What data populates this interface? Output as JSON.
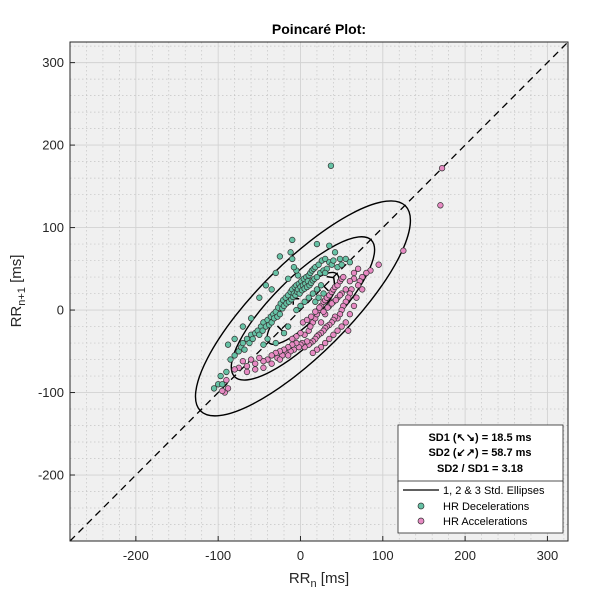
{
  "chart_data": {
    "type": "scatter",
    "title": "Poincaré Plot:",
    "xlabel": {
      "base": "RR",
      "sub": "n",
      "unit": " [ms]"
    },
    "ylabel": {
      "base": "RR",
      "sub": "n+1",
      "unit": " [ms]"
    },
    "xlim": [
      -280,
      325
    ],
    "ylim": [
      -280,
      325
    ],
    "xticks": [
      -200,
      -100,
      0,
      100,
      200,
      300
    ],
    "yticks": [
      -200,
      -100,
      0,
      100,
      200,
      300
    ],
    "grid": true,
    "identity_line": true,
    "ellipses": {
      "center": [
        3,
        2
      ],
      "sd1": 18.5,
      "sd2": 58.7,
      "multiples": [
        1,
        2,
        3
      ]
    },
    "stats": {
      "sd1": "SD1 (↖↘) = 18.5 ms",
      "sd2": "SD2 (↙↗) = 58.7 ms",
      "ratio": "SD2 / SD1 = 3.18"
    },
    "legend": {
      "position": "bottom-right",
      "entries": [
        "1, 2 & 3 Std. Ellipses",
        "HR Decelerations",
        "HR Accelerations"
      ]
    },
    "colors": {
      "decel": "#66c2a5",
      "accel": "#e78ac3",
      "background": "#f0f0f0"
    },
    "series": [
      {
        "name": "HR Decelerations",
        "points": [
          [
            37,
            175
          ],
          [
            -100,
            -90
          ],
          [
            -97,
            -80
          ],
          [
            -95,
            -90
          ],
          [
            -90,
            -75
          ],
          [
            -85,
            -60
          ],
          [
            -80,
            -55
          ],
          [
            -75,
            -50
          ],
          [
            -72,
            -45
          ],
          [
            -70,
            -40
          ],
          [
            -68,
            -48
          ],
          [
            -65,
            -35
          ],
          [
            -62,
            -40
          ],
          [
            -60,
            -30
          ],
          [
            -58,
            -35
          ],
          [
            -55,
            -28
          ],
          [
            -52,
            -25
          ],
          [
            -50,
            -30
          ],
          [
            -48,
            -20
          ],
          [
            -46,
            -25
          ],
          [
            -45,
            -15
          ],
          [
            -42,
            -20
          ],
          [
            -40,
            -12
          ],
          [
            -38,
            -18
          ],
          [
            -36,
            -8
          ],
          [
            -35,
            -15
          ],
          [
            -33,
            -5
          ],
          [
            -32,
            -10
          ],
          [
            -30,
            -2
          ],
          [
            -28,
            -8
          ],
          [
            -27,
            3
          ],
          [
            -25,
            -5
          ],
          [
            -24,
            8
          ],
          [
            -22,
            2
          ],
          [
            -21,
            12
          ],
          [
            -20,
            5
          ],
          [
            -18,
            15
          ],
          [
            -17,
            8
          ],
          [
            -15,
            18
          ],
          [
            -14,
            10
          ],
          [
            -12,
            22
          ],
          [
            -11,
            13
          ],
          [
            -10,
            25
          ],
          [
            -9,
            16
          ],
          [
            -8,
            20
          ],
          [
            -7,
            28
          ],
          [
            -6,
            18
          ],
          [
            -5,
            30
          ],
          [
            -4,
            22
          ],
          [
            -3,
            25
          ],
          [
            -2,
            32
          ],
          [
            -1,
            20
          ],
          [
            0,
            28
          ],
          [
            1,
            35
          ],
          [
            2,
            24
          ],
          [
            3,
            30
          ],
          [
            4,
            38
          ],
          [
            5,
            26
          ],
          [
            6,
            32
          ],
          [
            7,
            40
          ],
          [
            8,
            28
          ],
          [
            9,
            35
          ],
          [
            10,
            42
          ],
          [
            11,
            30
          ],
          [
            12,
            45
          ],
          [
            13,
            33
          ],
          [
            14,
            48
          ],
          [
            15,
            36
          ],
          [
            16,
            50
          ],
          [
            17,
            38
          ],
          [
            18,
            52
          ],
          [
            20,
            40
          ],
          [
            22,
            55
          ],
          [
            24,
            45
          ],
          [
            26,
            60
          ],
          [
            28,
            48
          ],
          [
            30,
            62
          ],
          [
            32,
            50
          ],
          [
            35,
            58
          ],
          [
            38,
            55
          ],
          [
            40,
            60
          ],
          [
            45,
            52
          ],
          [
            48,
            62
          ],
          [
            50,
            55
          ],
          [
            55,
            62
          ],
          [
            60,
            58
          ],
          [
            -3,
            42
          ],
          [
            -5,
            48
          ],
          [
            -8,
            52
          ],
          [
            -10,
            62
          ],
          [
            -12,
            70
          ],
          [
            -25,
            65
          ],
          [
            -30,
            -40
          ],
          [
            -40,
            -35
          ],
          [
            -45,
            -42
          ],
          [
            -20,
            -28
          ],
          [
            -15,
            -20
          ],
          [
            -5,
            0
          ],
          [
            0,
            5
          ],
          [
            5,
            10
          ],
          [
            10,
            15
          ],
          [
            15,
            20
          ],
          [
            20,
            25
          ],
          [
            25,
            30
          ],
          [
            18,
            10
          ],
          [
            22,
            15
          ],
          [
            28,
            20
          ],
          [
            -30,
            45
          ],
          [
            -42,
            30
          ],
          [
            -50,
            15
          ],
          [
            -60,
            -10
          ],
          [
            -70,
            -20
          ],
          [
            -80,
            -35
          ],
          [
            -105,
            -95
          ],
          [
            -88,
            -42
          ],
          [
            -35,
            25
          ],
          [
            -15,
            38
          ],
          [
            35,
            78
          ],
          [
            20,
            80
          ],
          [
            -10,
            85
          ],
          [
            30,
            45
          ],
          [
            42,
            70
          ]
        ]
      },
      {
        "name": "HR Accelerations",
        "points": [
          [
            172,
            172
          ],
          [
            170,
            127
          ],
          [
            125,
            72
          ],
          [
            95,
            55
          ],
          [
            85,
            48
          ],
          [
            80,
            45
          ],
          [
            75,
            40
          ],
          [
            72,
            35
          ],
          [
            70,
            30
          ],
          [
            65,
            38
          ],
          [
            62,
            25
          ],
          [
            60,
            20
          ],
          [
            58,
            15
          ],
          [
            55,
            10
          ],
          [
            52,
            5
          ],
          [
            50,
            0
          ],
          [
            48,
            -5
          ],
          [
            45,
            -10
          ],
          [
            42,
            -8
          ],
          [
            40,
            -12
          ],
          [
            38,
            -15
          ],
          [
            35,
            -18
          ],
          [
            32,
            -20
          ],
          [
            30,
            -22
          ],
          [
            28,
            -25
          ],
          [
            25,
            -28
          ],
          [
            22,
            -30
          ],
          [
            20,
            -32
          ],
          [
            18,
            -35
          ],
          [
            15,
            -38
          ],
          [
            12,
            -40
          ],
          [
            10,
            -42
          ],
          [
            8,
            -38
          ],
          [
            5,
            -45
          ],
          [
            2,
            -40
          ],
          [
            0,
            -42
          ],
          [
            -2,
            -45
          ],
          [
            -5,
            -40
          ],
          [
            -8,
            -48
          ],
          [
            -10,
            -42
          ],
          [
            -12,
            -50
          ],
          [
            -15,
            -45
          ],
          [
            -18,
            -52
          ],
          [
            -20,
            -48
          ],
          [
            -22,
            -55
          ],
          [
            -25,
            -50
          ],
          [
            -28,
            -58
          ],
          [
            -30,
            -52
          ],
          [
            -35,
            -55
          ],
          [
            -40,
            -60
          ],
          [
            -45,
            -62
          ],
          [
            -50,
            -58
          ],
          [
            -55,
            -65
          ],
          [
            -60,
            -60
          ],
          [
            -65,
            -68
          ],
          [
            -70,
            -62
          ],
          [
            -75,
            -70
          ],
          [
            -80,
            -72
          ],
          [
            -90,
            -85
          ],
          [
            -92,
            -100
          ],
          [
            -95,
            -98
          ],
          [
            -88,
            -95
          ],
          [
            15,
            -15
          ],
          [
            18,
            -10
          ],
          [
            20,
            -5
          ],
          [
            22,
            0
          ],
          [
            25,
            5
          ],
          [
            28,
            10
          ],
          [
            30,
            12
          ],
          [
            32,
            15
          ],
          [
            35,
            18
          ],
          [
            38,
            22
          ],
          [
            40,
            25
          ],
          [
            42,
            28
          ],
          [
            45,
            30
          ],
          [
            48,
            35
          ],
          [
            50,
            38
          ],
          [
            52,
            40
          ],
          [
            10,
            -25
          ],
          [
            12,
            -20
          ],
          [
            5,
            -30
          ],
          [
            0,
            -28
          ],
          [
            -5,
            -32
          ],
          [
            -10,
            -35
          ],
          [
            25,
            -15
          ],
          [
            30,
            -5
          ],
          [
            35,
            5
          ],
          [
            40,
            10
          ],
          [
            45,
            15
          ],
          [
            50,
            20
          ],
          [
            55,
            25
          ],
          [
            60,
            35
          ],
          [
            65,
            45
          ],
          [
            70,
            50
          ],
          [
            55,
            -15
          ],
          [
            50,
            -20
          ],
          [
            45,
            -25
          ],
          [
            40,
            -30
          ],
          [
            35,
            -35
          ],
          [
            30,
            -40
          ],
          [
            25,
            -45
          ],
          [
            20,
            -48
          ],
          [
            15,
            -52
          ],
          [
            60,
            -5
          ],
          [
            65,
            5
          ],
          [
            68,
            15
          ],
          [
            75,
            25
          ],
          [
            58,
            -25
          ],
          [
            3,
            -15
          ],
          [
            8,
            -12
          ],
          [
            13,
            -8
          ],
          [
            18,
            -2
          ],
          [
            23,
            3
          ],
          [
            28,
            -2
          ],
          [
            33,
            3
          ],
          [
            38,
            8
          ],
          [
            43,
            12
          ],
          [
            48,
            18
          ],
          [
            -15,
            -55
          ],
          [
            -25,
            -60
          ],
          [
            -35,
            -65
          ],
          [
            -45,
            -70
          ],
          [
            -55,
            -72
          ],
          [
            -65,
            -75
          ]
        ]
      }
    ]
  }
}
